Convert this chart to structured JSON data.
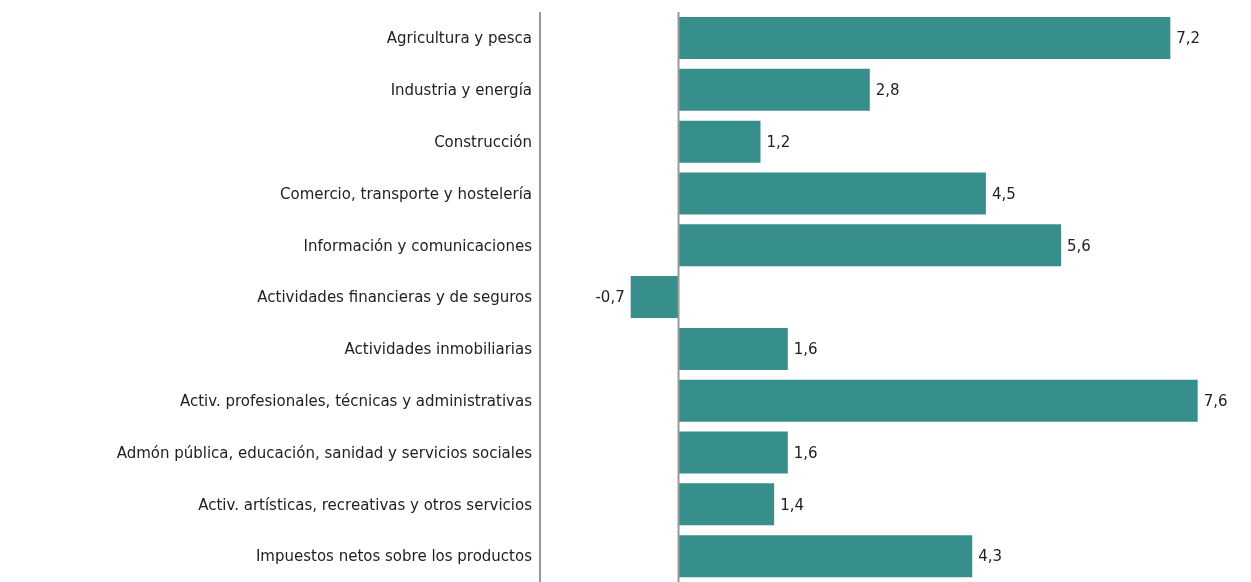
{
  "chart_data": {
    "type": "bar",
    "orientation": "horizontal",
    "categories": [
      "Agricultura y pesca",
      "Industria y energía",
      "Construcción",
      "Comercio, transporte y hostelería",
      "Información y comunicaciones",
      "Actividades financieras y de seguros",
      "Actividades inmobiliarias",
      "Activ. profesionales, técnicas y administrativas",
      "Admón pública, educación, sanidad y servicios sociales",
      "Activ. artísticas, recreativas y otros servicios",
      "Impuestos netos sobre los productos"
    ],
    "values": [
      7.2,
      2.8,
      1.2,
      4.5,
      5.6,
      -0.7,
      1.6,
      7.6,
      1.6,
      1.4,
      4.3
    ],
    "value_labels": [
      "7,2",
      "2,8",
      "1,2",
      "4,5",
      "5,6",
      "-0,7",
      "1,6",
      "7,6",
      "1,6",
      "1,4",
      "4,3"
    ],
    "color": "#368f8b",
    "grid": false,
    "legend": false
  }
}
